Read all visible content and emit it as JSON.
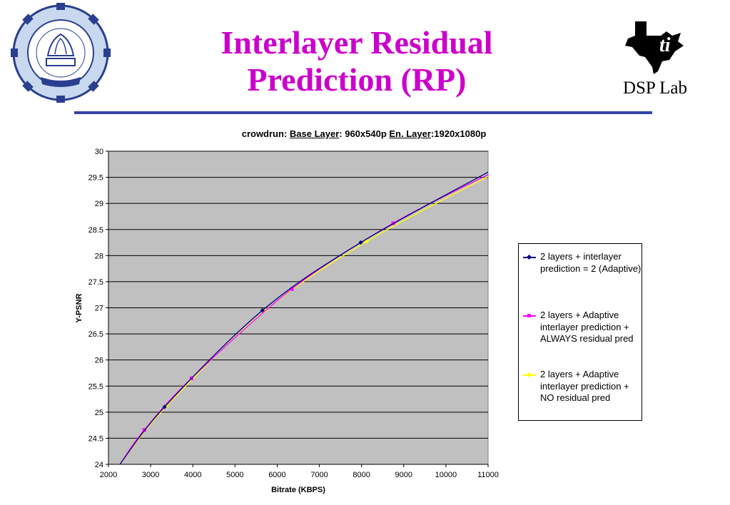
{
  "slide": {
    "title_line1": "Interlayer Residual",
    "title_line2": "Prediction (RP)",
    "lab_name": "DSP Lab"
  },
  "logos": {
    "left": "institute-seal",
    "right": "texas-logo"
  },
  "colors": {
    "title": "#cc00cc",
    "rule": "#3344aa",
    "plot_bg": "#c0c0c0",
    "series1": "#000080",
    "series2": "#ff00ff",
    "series3": "#ffff00"
  },
  "chart_data": {
    "type": "line",
    "title_parts": {
      "prefix": "crowdrun: ",
      "base_label": "Base Layer",
      "base_value": ": 960x540p ",
      "en_label": "En. Layer",
      "en_value": ":1920x1080p"
    },
    "xlabel": "Bitrate (KBPS)",
    "ylabel": "Y-PSNR",
    "xlim": [
      2000,
      11000
    ],
    "ylim": [
      24,
      30
    ],
    "x_ticks": [
      2000,
      3000,
      4000,
      5000,
      6000,
      7000,
      8000,
      9000,
      10000,
      11000
    ],
    "y_ticks": [
      "24",
      "24.5",
      "25",
      "25.5",
      "26",
      "26.5",
      "27",
      "27.5",
      "28",
      "28.5",
      "29",
      "29.5",
      "30"
    ],
    "grid": true,
    "legend_position": "right",
    "series": [
      {
        "name": "2 layers + interlayer prediction = 2 (Adaptive)",
        "color": "#000080",
        "x": [
          2270,
          3330,
          5650,
          7980,
          11000
        ],
        "y": [
          24.0,
          25.1,
          26.95,
          28.25,
          29.6
        ]
      },
      {
        "name": "2 layers + Adaptive interlayer prediction + ALWAYS residual pred",
        "color": "#ff00ff",
        "x": [
          2270,
          2850,
          3970,
          6350,
          8750,
          11000
        ],
        "y": [
          24.0,
          24.66,
          25.65,
          27.36,
          28.62,
          29.55
        ]
      },
      {
        "name": "2 layers + Adaptive interlayer prediction + NO residual pred",
        "color": "#ffff00",
        "x": [
          2270,
          3380,
          5720,
          8120,
          11000
        ],
        "y": [
          24.0,
          25.12,
          26.95,
          28.27,
          29.52
        ]
      }
    ]
  }
}
